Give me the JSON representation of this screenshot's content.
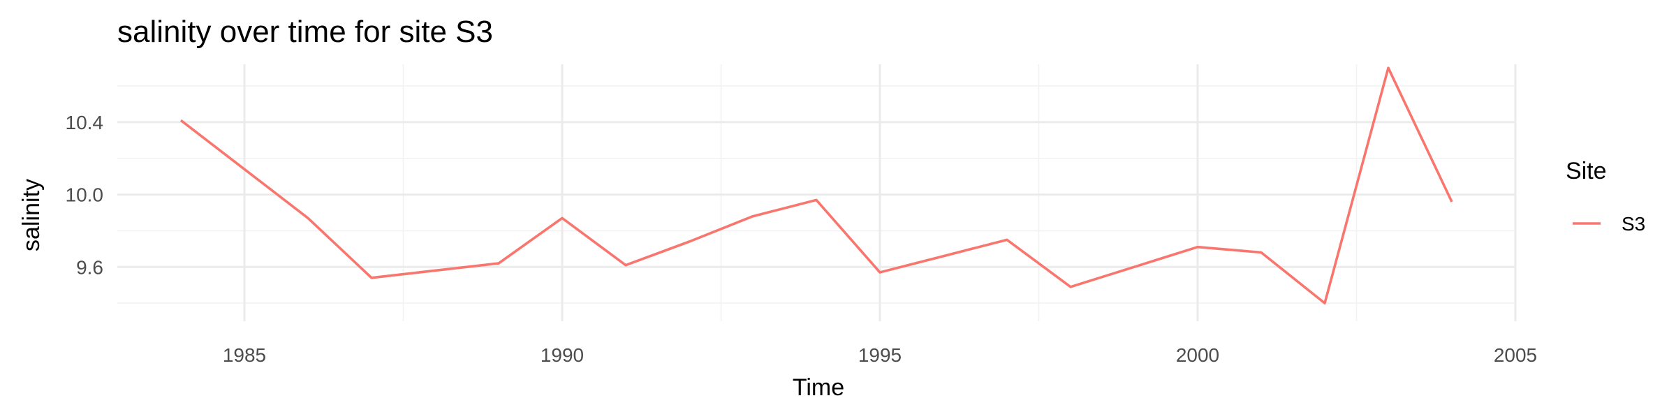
{
  "chart_data": {
    "type": "line",
    "title": "salinity over time for site S3",
    "xlabel": "Time",
    "ylabel": "salinity",
    "xlim": [
      1983,
      2005
    ],
    "ylim": [
      9.3,
      10.72
    ],
    "x_ticks": [
      1985,
      1990,
      1995,
      2000,
      2005
    ],
    "y_ticks": [
      9.6,
      10.0,
      10.4
    ],
    "x_tick_labels": [
      "1985",
      "1990",
      "1995",
      "2000",
      "2005"
    ],
    "y_tick_labels": [
      "9.6",
      "10.0",
      "10.4"
    ],
    "grid": true,
    "legend": {
      "title": "Site",
      "placement": "right"
    },
    "series": [
      {
        "name": "S3",
        "color": "#F8766D",
        "x": [
          1984,
          1985,
          1986,
          1987,
          1988,
          1989,
          1990,
          1991,
          1992,
          1993,
          1994,
          1995,
          1996,
          1997,
          1998,
          1999,
          2000,
          2001,
          2002,
          2003,
          2004
        ],
        "y": [
          10.41,
          10.14,
          9.87,
          9.54,
          9.58,
          9.62,
          9.87,
          9.61,
          9.74,
          9.88,
          9.97,
          9.57,
          9.66,
          9.75,
          9.49,
          9.6,
          9.71,
          9.68,
          9.4,
          10.7,
          9.96
        ]
      }
    ]
  }
}
